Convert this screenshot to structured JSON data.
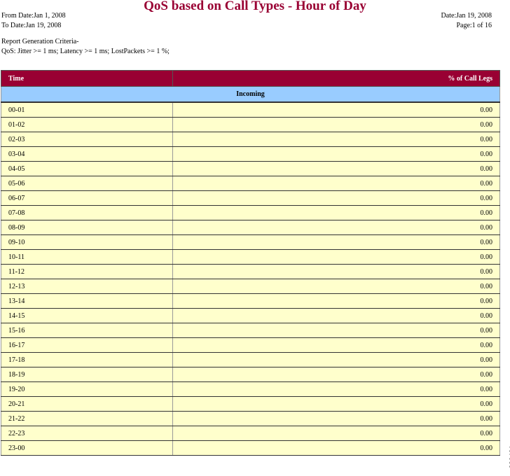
{
  "report": {
    "title": "QoS based on Call Types - Hour of Day",
    "from_date": "From Date:Jan 1, 2008",
    "to_date": "To Date:Jan 19, 2008",
    "date": "Date:Jan 19, 2008",
    "page": "Page:1 of 16",
    "criteria_label": "Report Generation Criteria-",
    "criteria": "QoS: Jitter >= 1 ms; Latency >= 1 ms; LostPackets >= 1 %;"
  },
  "table": {
    "columns": [
      "Time",
      "% of Call Legs"
    ],
    "section": "Incoming",
    "rows": [
      [
        "00-01",
        "0.00"
      ],
      [
        "01-02",
        "0.00"
      ],
      [
        "02-03",
        "0.00"
      ],
      [
        "03-04",
        "0.00"
      ],
      [
        "04-05",
        "0.00"
      ],
      [
        "05-06",
        "0.00"
      ],
      [
        "06-07",
        "0.00"
      ],
      [
        "07-08",
        "0.00"
      ],
      [
        "08-09",
        "0.00"
      ],
      [
        "09-10",
        "0.00"
      ],
      [
        "10-11",
        "0.00"
      ],
      [
        "11-12",
        "0.00"
      ],
      [
        "12-13",
        "0.00"
      ],
      [
        "13-14",
        "0.00"
      ],
      [
        "14-15",
        "0.00"
      ],
      [
        "15-16",
        "0.00"
      ],
      [
        "16-17",
        "0.00"
      ],
      [
        "17-18",
        "0.00"
      ],
      [
        "18-19",
        "0.00"
      ],
      [
        "19-20",
        "0.00"
      ],
      [
        "20-21",
        "0.00"
      ],
      [
        "21-22",
        "0.00"
      ],
      [
        "22-23",
        "0.00"
      ],
      [
        "23-00",
        "0.00"
      ]
    ]
  },
  "watermark": "280491",
  "colors": {
    "header": "#990033",
    "section": "#99ccff",
    "row": "#ffffcc"
  }
}
